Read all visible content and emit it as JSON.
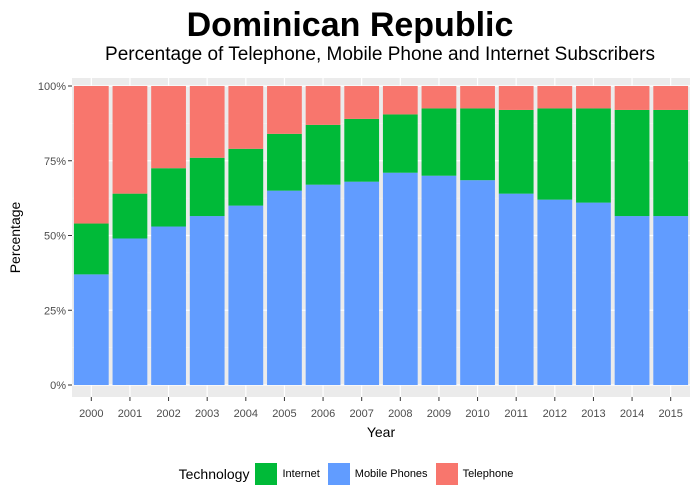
{
  "chart_data": {
    "type": "bar",
    "stacked": true,
    "title": "Dominican Republic",
    "subtitle": "Percentage of Telephone, Mobile Phone and Internet Subscribers",
    "xlabel": "Year",
    "ylabel": "Percentage",
    "ylim": [
      0,
      1
    ],
    "yticks": [
      "0%",
      "25%",
      "50%",
      "75%",
      "100%"
    ],
    "ytick_values": [
      0,
      0.25,
      0.5,
      0.75,
      1
    ],
    "categories": [
      "2000",
      "2001",
      "2002",
      "2003",
      "2004",
      "2005",
      "2006",
      "2007",
      "2008",
      "2009",
      "2010",
      "2011",
      "2012",
      "2013",
      "2014",
      "2015"
    ],
    "series": [
      {
        "name": "Mobile Phones",
        "color": "#619CFF",
        "values": [
          0.37,
          0.49,
          0.53,
          0.565,
          0.6,
          0.65,
          0.67,
          0.68,
          0.71,
          0.7,
          0.685,
          0.64,
          0.62,
          0.61,
          0.565,
          0.565
        ]
      },
      {
        "name": "Internet",
        "color": "#00BA38",
        "values": [
          0.17,
          0.15,
          0.195,
          0.195,
          0.19,
          0.19,
          0.2,
          0.21,
          0.195,
          0.225,
          0.24,
          0.28,
          0.305,
          0.315,
          0.355,
          0.355
        ]
      },
      {
        "name": "Telephone",
        "color": "#F8766D",
        "values": [
          0.46,
          0.36,
          0.275,
          0.24,
          0.21,
          0.16,
          0.13,
          0.11,
          0.095,
          0.075,
          0.075,
          0.08,
          0.075,
          0.075,
          0.08,
          0.08
        ]
      }
    ],
    "grid": true,
    "legend_position": "bottom",
    "legend_title": "Technology",
    "legend_items": [
      {
        "label": "Internet",
        "color": "#00BA38"
      },
      {
        "label": "Mobile Phones",
        "color": "#619CFF"
      },
      {
        "label": "Telephone",
        "color": "#F8766D"
      }
    ]
  }
}
